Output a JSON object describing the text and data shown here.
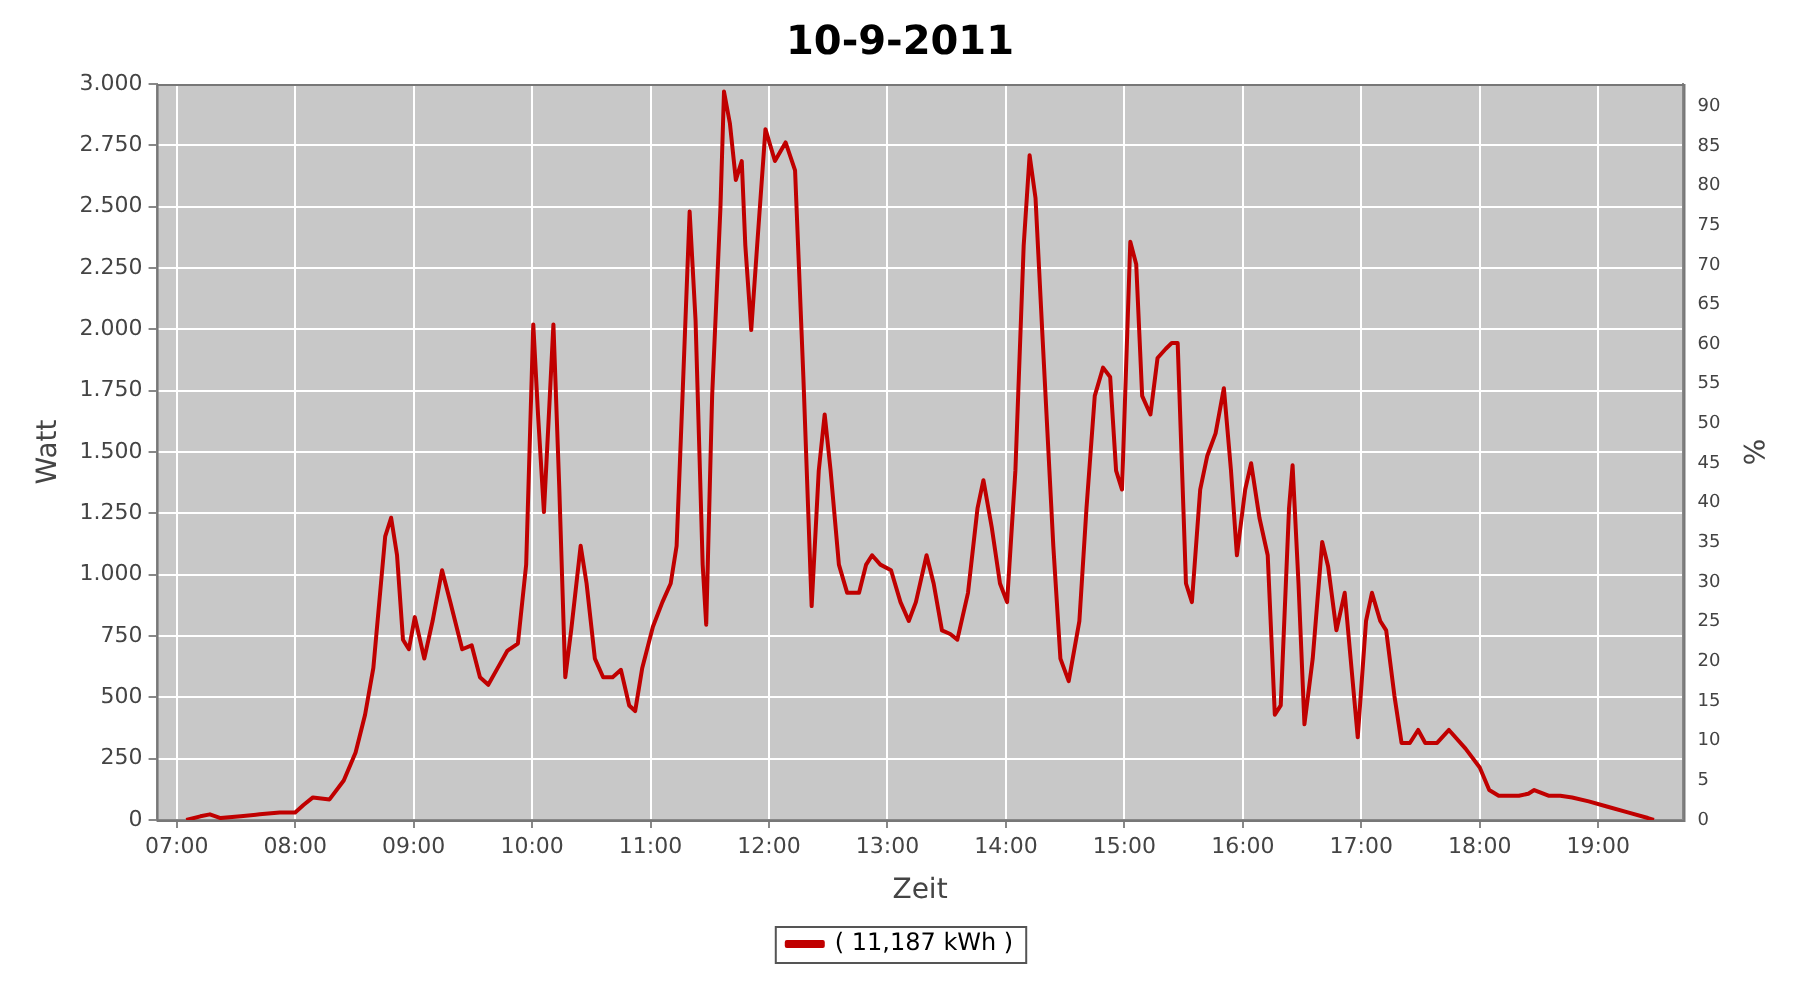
{
  "chart_data": {
    "type": "line",
    "title": "10-9-2011",
    "xlabel": "Zeit",
    "ylabel": "Watt",
    "y2label": "%",
    "x": [
      7.08,
      7.2,
      7.28,
      7.37,
      7.54,
      7.7,
      7.87,
      8.0,
      8.07,
      8.15,
      8.29,
      8.41,
      8.51,
      8.59,
      8.66,
      8.71,
      8.76,
      8.81,
      8.86,
      8.91,
      8.96,
      9.01,
      9.09,
      9.16,
      9.24,
      9.31,
      9.41,
      9.49,
      9.56,
      9.63,
      9.71,
      9.79,
      9.88,
      9.95,
      10.01,
      10.05,
      10.1,
      10.15,
      10.18,
      10.23,
      10.28,
      10.33,
      10.41,
      10.46,
      10.53,
      10.6,
      10.68,
      10.75,
      10.82,
      10.87,
      10.93,
      11.02,
      11.1,
      11.17,
      11.22,
      11.27,
      11.33,
      11.38,
      11.44,
      11.47,
      11.52,
      11.59,
      11.62,
      11.67,
      11.72,
      11.77,
      11.8,
      11.85,
      11.9,
      11.97,
      12.05,
      12.14,
      12.22,
      12.29,
      12.36,
      12.42,
      12.47,
      12.52,
      12.59,
      12.66,
      12.76,
      12.82,
      12.87,
      12.94,
      13.03,
      13.11,
      13.18,
      13.24,
      13.33,
      13.39,
      13.46,
      13.53,
      13.59,
      13.68,
      13.76,
      13.81,
      13.88,
      13.95,
      14.01,
      14.08,
      14.15,
      14.2,
      14.25,
      14.31,
      14.4,
      14.46,
      14.53,
      14.62,
      14.68,
      14.75,
      14.82,
      14.88,
      14.93,
      14.98,
      15.05,
      15.1,
      15.15,
      15.22,
      15.28,
      15.35,
      15.4,
      15.45,
      15.52,
      15.57,
      15.64,
      15.7,
      15.77,
      15.84,
      15.9,
      15.95,
      16.02,
      16.07,
      16.14,
      16.21,
      16.27,
      16.32,
      16.39,
      16.42,
      16.47,
      16.52,
      16.59,
      16.67,
      16.72,
      16.79,
      16.86,
      16.91,
      16.97,
      17.04,
      17.09,
      17.16,
      17.21,
      17.28,
      17.34,
      17.41,
      17.48,
      17.54,
      17.64,
      17.74,
      17.88,
      18.0,
      18.08,
      18.16,
      18.33,
      18.41,
      18.46,
      18.58,
      18.68,
      18.78,
      18.92,
      19.08,
      19.25,
      19.42,
      19.47
    ],
    "series": [
      {
        "name": "( 11,187 kWh )",
        "color": "#c00000",
        "values": [
          0,
          15,
          23,
          8,
          15,
          23,
          31,
          31,
          61,
          92,
          84,
          161,
          275,
          429,
          620,
          888,
          1156,
          1232,
          1079,
          735,
          696,
          827,
          658,
          811,
          1018,
          888,
          696,
          712,
          582,
          551,
          620,
          689,
          719,
          1041,
          2020,
          1653,
          1255,
          1730,
          2020,
          1347,
          582,
          773,
          1118,
          964,
          658,
          582,
          582,
          612,
          467,
          444,
          620,
          788,
          888,
          964,
          1117,
          1729,
          2480,
          2036,
          1041,
          796,
          1729,
          2495,
          2969,
          2839,
          2609,
          2686,
          2342,
          1997,
          2342,
          2816,
          2686,
          2762,
          2648,
          1806,
          872,
          1424,
          1653,
          1424,
          1041,
          926,
          926,
          1041,
          1079,
          1041,
          1018,
          888,
          811,
          888,
          1079,
          964,
          773,
          758,
          735,
          926,
          1270,
          1385,
          1194,
          964,
          888,
          1424,
          2342,
          2710,
          2534,
          1959,
          1117,
          658,
          566,
          811,
          1270,
          1729,
          1844,
          1806,
          1424,
          1347,
          2357,
          2265,
          1729,
          1653,
          1883,
          1921,
          1944,
          1944,
          964,
          888,
          1347,
          1485,
          1576,
          1760,
          1424,
          1079,
          1347,
          1454,
          1232,
          1079,
          429,
          467,
          1270,
          1446,
          964,
          390,
          658,
          1133,
          1033,
          773,
          926,
          658,
          337,
          811,
          926,
          811,
          773,
          505,
          314,
          314,
          367,
          314,
          314,
          367,
          291,
          214,
          122,
          99,
          99,
          107,
          122,
          99,
          99,
          92,
          76,
          54,
          31,
          8,
          0
        ]
      }
    ],
    "xlim": [
      6.83,
      19.72
    ],
    "xticks": [
      {
        "value": 7,
        "label": "07:00"
      },
      {
        "value": 8,
        "label": "08:00"
      },
      {
        "value": 9,
        "label": "09:00"
      },
      {
        "value": 10,
        "label": "10:00"
      },
      {
        "value": 11,
        "label": "11:00"
      },
      {
        "value": 12,
        "label": "12:00"
      },
      {
        "value": 13,
        "label": "13:00"
      },
      {
        "value": 14,
        "label": "14:00"
      },
      {
        "value": 15,
        "label": "15:00"
      },
      {
        "value": 16,
        "label": "16:00"
      },
      {
        "value": 17,
        "label": "17:00"
      },
      {
        "value": 18,
        "label": "18:00"
      },
      {
        "value": 19,
        "label": "19:00"
      }
    ],
    "ylim": [
      0,
      3000
    ],
    "yticks": [
      0,
      250,
      500,
      750,
      {
        "value": 1000,
        "label": "1.000"
      },
      {
        "value": 1250,
        "label": "1.250"
      },
      {
        "value": 1500,
        "label": "1.500"
      },
      {
        "value": 1750,
        "label": "1.750"
      },
      {
        "value": 2000,
        "label": "2.000"
      },
      {
        "value": 2250,
        "label": "2.250"
      },
      {
        "value": 2500,
        "label": "2.500"
      },
      {
        "value": 2750,
        "label": "2.750"
      },
      {
        "value": 3000,
        "label": "3.000"
      }
    ],
    "y2lim": [
      0,
      92.8
    ],
    "y2ticks": [
      0,
      5,
      10,
      15,
      20,
      25,
      30,
      35,
      40,
      45,
      50,
      55,
      60,
      65,
      70,
      75,
      80,
      85,
      90
    ],
    "grid": true,
    "legend": "bottom",
    "marker": "none",
    "line_style": "solid"
  }
}
